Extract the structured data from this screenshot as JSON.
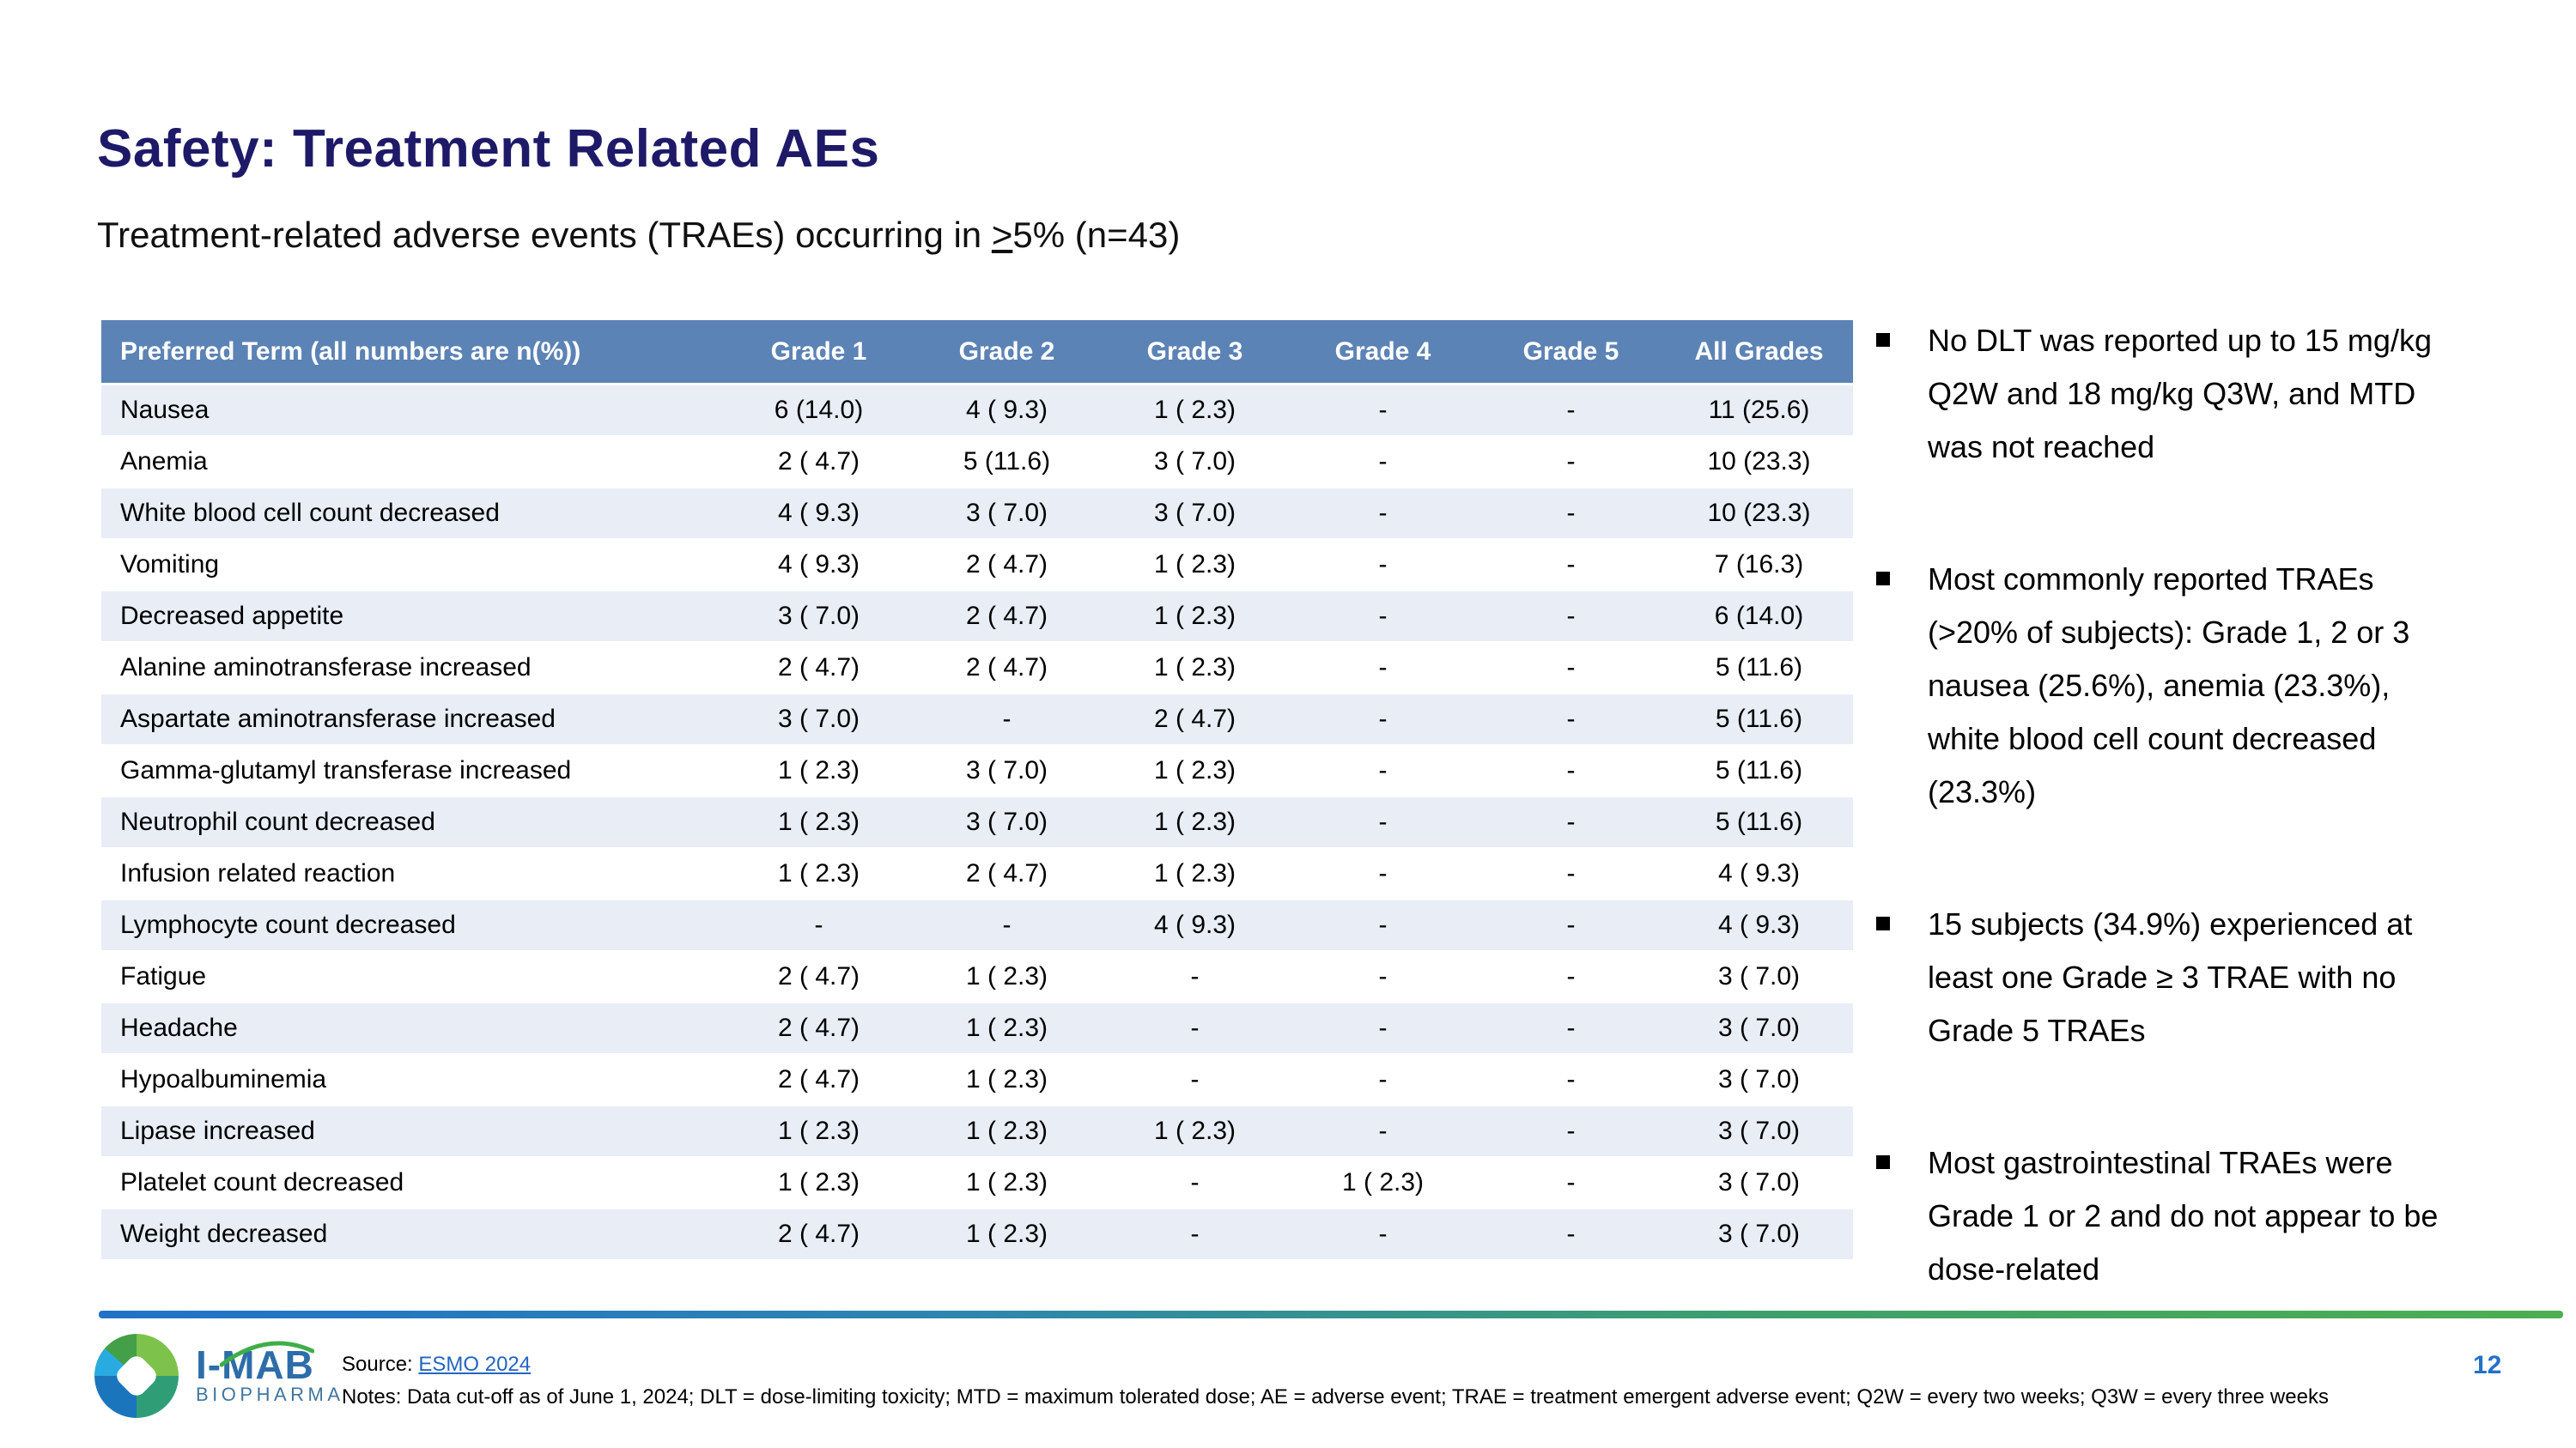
{
  "slide": {
    "title": "Safety: Treatment Related AEs",
    "subtitle_prefix": "Treatment-related adverse events (TRAEs) occurring in ",
    "subtitle_geq": ">",
    "subtitle_suffix": "5% (n=43)"
  },
  "table": {
    "columns": [
      "Preferred Term (all numbers are n(%))",
      "Grade 1",
      "Grade 2",
      "Grade 3",
      "Grade 4",
      "Grade 5",
      "All Grades"
    ],
    "rows": [
      [
        "Nausea",
        "6 (14.0)",
        "4 ( 9.3)",
        "1 ( 2.3)",
        "-",
        "-",
        "11 (25.6)"
      ],
      [
        "Anemia",
        "2 ( 4.7)",
        "5 (11.6)",
        "3 ( 7.0)",
        "-",
        "-",
        "10 (23.3)"
      ],
      [
        "White blood cell count decreased",
        "4 ( 9.3)",
        "3 ( 7.0)",
        "3 ( 7.0)",
        "-",
        "-",
        "10 (23.3)"
      ],
      [
        "Vomiting",
        "4 ( 9.3)",
        "2 ( 4.7)",
        "1 ( 2.3)",
        "-",
        "-",
        "7 (16.3)"
      ],
      [
        "Decreased appetite",
        "3 ( 7.0)",
        "2 ( 4.7)",
        "1 ( 2.3)",
        "-",
        "-",
        "6 (14.0)"
      ],
      [
        "Alanine aminotransferase increased",
        "2 ( 4.7)",
        "2 ( 4.7)",
        "1 ( 2.3)",
        "-",
        "-",
        "5 (11.6)"
      ],
      [
        "Aspartate aminotransferase increased",
        "3 ( 7.0)",
        "-",
        "2 ( 4.7)",
        "-",
        "-",
        "5 (11.6)"
      ],
      [
        "Gamma-glutamyl transferase increased",
        "1 ( 2.3)",
        "3 ( 7.0)",
        "1 ( 2.3)",
        "-",
        "-",
        "5 (11.6)"
      ],
      [
        "Neutrophil count decreased",
        "1 ( 2.3)",
        "3 ( 7.0)",
        "1 ( 2.3)",
        "-",
        "-",
        "5 (11.6)"
      ],
      [
        "Infusion related reaction",
        "1 ( 2.3)",
        "2 ( 4.7)",
        "1 ( 2.3)",
        "-",
        "-",
        "4 ( 9.3)"
      ],
      [
        "Lymphocyte count decreased",
        "-",
        "-",
        "4 ( 9.3)",
        "-",
        "-",
        "4 ( 9.3)"
      ],
      [
        "Fatigue",
        "2 ( 4.7)",
        "1 ( 2.3)",
        "-",
        "-",
        "-",
        "3 ( 7.0)"
      ],
      [
        "Headache",
        "2 ( 4.7)",
        "1 ( 2.3)",
        "-",
        "-",
        "-",
        "3 ( 7.0)"
      ],
      [
        "Hypoalbuminemia",
        "2 ( 4.7)",
        "1 ( 2.3)",
        "-",
        "-",
        "-",
        "3 ( 7.0)"
      ],
      [
        "Lipase increased",
        "1 ( 2.3)",
        "1 ( 2.3)",
        "1 ( 2.3)",
        "-",
        "-",
        "3 ( 7.0)"
      ],
      [
        "Platelet count decreased",
        "1 ( 2.3)",
        "1 ( 2.3)",
        "-",
        "1 ( 2.3)",
        "-",
        "3 ( 7.0)"
      ],
      [
        "Weight decreased",
        "2 ( 4.7)",
        "1 ( 2.3)",
        "-",
        "-",
        "-",
        "3 ( 7.0)"
      ]
    ]
  },
  "bullets": [
    "No DLT was reported up to 15 mg/kg Q2W and 18 mg/kg Q3W, and MTD was not reached",
    "Most commonly reported TRAEs (>20% of subjects): Grade 1, 2 or 3 nausea (25.6%), anemia (23.3%), white blood cell count decreased (23.3%)",
    "15 subjects (34.9%) experienced at least one Grade ≥ 3 TRAE with no Grade 5 TRAEs",
    "Most gastrointestinal TRAEs were Grade 1 or 2 and do not appear to be dose-related"
  ],
  "footer": {
    "source_label": "Source: ",
    "source_link": "ESMO 2024",
    "notes": "Notes: Data cut-off as of June 1, 2024; DLT = dose-limiting toxicity; MTD = maximum tolerated dose; AE = adverse event; TRAE = treatment emergent adverse event; Q2W = every two weeks; Q3W = every three weeks",
    "page_number": "12",
    "logo_title": "I-MAB",
    "logo_subtitle": "BIOPHARMA"
  },
  "colors": {
    "title": "#1e1a68",
    "table_header_bg": "#5c83b5",
    "table_alt_row_bg": "#e8edf6",
    "link": "#2465c2",
    "page_number": "#2471c8",
    "divider_blue": "#2171c7",
    "divider_green": "#4cae50"
  }
}
